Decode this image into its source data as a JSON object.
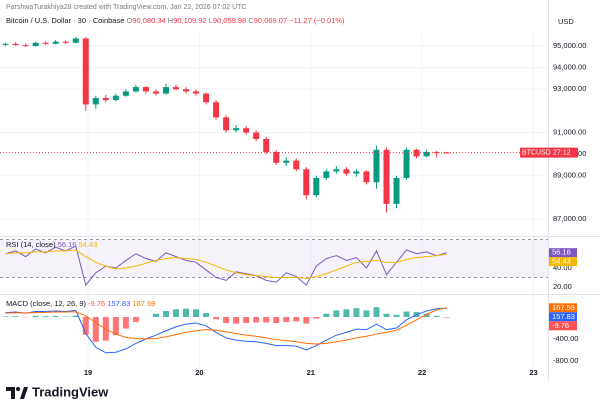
{
  "header": {
    "credit": "ParshwaTurakhiya28 created with TradingView.com, Jan 22, 2026 07:02 UTC",
    "symbol": "Bitcoin / U.S. Dollar · 30 · Coinbase",
    "ohlc": [
      {
        "key": "O",
        "value": "90,080.34"
      },
      {
        "key": "H",
        "value": "90,109.92"
      },
      {
        "key": "L",
        "value": "90,059.98"
      },
      {
        "key": "C",
        "value": "90,069.07"
      }
    ],
    "change": "−11.27 (−0.01%)",
    "currency": "USD"
  },
  "price_label": {
    "symbol": "BTCUSD",
    "countdown": "27:12"
  },
  "footer": {
    "brand": "TradingView"
  },
  "chart_data": [
    {
      "type": "candlestick",
      "up_color": "#089981",
      "down_color": "#f23645",
      "grid": true,
      "x": [
        18.26,
        18.35,
        18.44,
        18.53,
        18.62,
        18.71,
        18.8,
        18.89,
        18.98,
        19.07,
        19.16,
        19.25,
        19.34,
        19.43,
        19.52,
        19.61,
        19.7,
        19.79,
        19.88,
        19.97,
        20.06,
        20.15,
        20.24,
        20.33,
        20.42,
        20.51,
        20.6,
        20.69,
        20.78,
        20.87,
        20.96,
        21.05,
        21.14,
        21.23,
        21.32,
        21.41,
        21.5,
        21.59,
        21.68,
        21.77,
        21.86,
        21.95,
        22.04,
        22.13,
        22.22
      ],
      "open": [
        95050,
        95100,
        95040,
        95000,
        95150,
        95100,
        95200,
        95150,
        95350,
        92300,
        92600,
        92500,
        92700,
        92900,
        93100,
        92900,
        92800,
        93100,
        93000,
        92900,
        92800,
        92400,
        91700,
        91100,
        91200,
        91000,
        90700,
        90100,
        89600,
        89700,
        89300,
        88100,
        88900,
        89200,
        89300,
        89100,
        89200,
        88700,
        90200,
        87700,
        88900,
        90200,
        89900,
        90100,
        90080.34
      ],
      "high": [
        95150,
        95180,
        95120,
        95200,
        95220,
        95280,
        95260,
        95420,
        95400,
        92700,
        92750,
        92800,
        93000,
        93200,
        93150,
        93000,
        93250,
        93200,
        93100,
        93000,
        92850,
        92500,
        91800,
        91350,
        91300,
        91100,
        90800,
        90200,
        89850,
        89800,
        89400,
        89000,
        89300,
        89450,
        89400,
        89300,
        89250,
        90400,
        90300,
        89000,
        90300,
        90250,
        90200,
        90150,
        90109.92
      ],
      "low": [
        94980,
        95020,
        94950,
        94980,
        95050,
        95080,
        95090,
        95120,
        92000,
        92100,
        92400,
        92450,
        92650,
        92850,
        92800,
        92700,
        92750,
        92950,
        92800,
        92700,
        92300,
        91600,
        91000,
        91000,
        90900,
        90600,
        90000,
        89500,
        89450,
        89200,
        87900,
        88000,
        88800,
        89100,
        89000,
        88950,
        88600,
        88400,
        87300,
        87500,
        88800,
        89800,
        89850,
        89850,
        90059.98
      ],
      "close": [
        95100,
        95040,
        95000,
        95150,
        95100,
        95200,
        95150,
        95350,
        92300,
        92600,
        92500,
        92700,
        92900,
        93100,
        92900,
        92800,
        93100,
        93000,
        92900,
        92800,
        92400,
        91700,
        91100,
        91200,
        91000,
        90700,
        90100,
        89600,
        89700,
        89300,
        88100,
        88900,
        89200,
        89300,
        89100,
        89200,
        88700,
        90200,
        87700,
        88900,
        90200,
        89900,
        90100,
        90080.34,
        90069.07
      ],
      "xlim": [
        18.21,
        23.13
      ],
      "xticks": [
        19,
        20,
        21,
        22,
        23
      ],
      "ylim": [
        86260,
        95740
      ],
      "yticks": [
        {
          "value": 95000,
          "label": "95,000.00"
        },
        {
          "value": 94000,
          "label": "94,000.00"
        },
        {
          "value": 93000,
          "label": "93,000.00"
        },
        {
          "value": 91000,
          "label": "91,000.00"
        },
        {
          "value": 90000,
          "label": "90,000.00"
        },
        {
          "value": 89000,
          "label": "89,000.00"
        },
        {
          "value": 87000,
          "label": "87,000.00"
        }
      ]
    },
    {
      "type": "line",
      "title": "RSI (14, close)",
      "band": [
        30,
        70
      ],
      "band_color": "#7e57c2",
      "series": [
        {
          "color": "#7e57c2",
          "values": [
            55,
            58,
            52,
            60,
            56,
            62,
            58,
            63,
            22,
            35,
            42,
            40,
            48,
            55,
            50,
            47,
            56,
            52,
            48,
            46,
            38,
            30,
            27,
            36,
            34,
            32,
            27,
            25,
            35,
            31,
            22,
            42,
            50,
            53,
            48,
            51,
            40,
            58,
            33,
            46,
            59,
            55,
            57,
            53,
            56.16
          ]
        },
        {
          "color": "#f5b800",
          "values": [
            55,
            56,
            56,
            57,
            57,
            58,
            58,
            59,
            52,
            46,
            42,
            39,
            40,
            42,
            45,
            48,
            50,
            51,
            50,
            49,
            46,
            42,
            38,
            35,
            33,
            32,
            31,
            30,
            30,
            30,
            29,
            31,
            34,
            38,
            42,
            46,
            47,
            48,
            46,
            46,
            49,
            51,
            52,
            53,
            54.43
          ]
        }
      ],
      "ylim": [
        13.7,
        71.6
      ],
      "yticks": [
        {
          "value": 40,
          "label": "40.00"
        },
        {
          "value": 20,
          "label": "20.00"
        }
      ]
    },
    {
      "type": "line",
      "title": "MACD (close, 12, 26, 9)",
      "series": [
        {
          "style": "histogram",
          "color": "#26a69a",
          "negative_color": "#ff5252",
          "values": [
            10,
            15,
            -5,
            20,
            15,
            20,
            8,
            25,
            -320,
            -450,
            -430,
            -330,
            -210,
            -90,
            0,
            60,
            110,
            140,
            150,
            140,
            70,
            -40,
            -110,
            -120,
            -110,
            -100,
            -100,
            -110,
            -90,
            -80,
            -120,
            -30,
            60,
            120,
            140,
            160,
            120,
            180,
            60,
            40,
            100,
            90,
            60,
            20,
            -9.76
          ]
        },
        {
          "color": "#2962ff",
          "values": [
            80,
            90,
            70,
            100,
            100,
            110,
            100,
            120,
            -300,
            -550,
            -650,
            -640,
            -580,
            -480,
            -400,
            -330,
            -250,
            -180,
            -130,
            -110,
            -160,
            -280,
            -380,
            -420,
            -440,
            -450,
            -480,
            -520,
            -520,
            -530,
            -600,
            -520,
            -420,
            -330,
            -280,
            -220,
            -230,
            -130,
            -230,
            -200,
            -50,
            40,
            110,
            150,
            157.83
          ]
        },
        {
          "color": "#ff6d00",
          "values": [
            70,
            75,
            75,
            80,
            85,
            90,
            92,
            95,
            20,
            -100,
            -220,
            -310,
            -370,
            -390,
            -400,
            -390,
            -360,
            -320,
            -280,
            -250,
            -230,
            -240,
            -270,
            -300,
            -330,
            -350,
            -380,
            -410,
            -430,
            -450,
            -480,
            -490,
            -480,
            -450,
            -420,
            -380,
            -350,
            -310,
            -280,
            -240,
            -150,
            -50,
            50,
            130,
            167.59
          ]
        }
      ],
      "ylim": [
        -909,
        382
      ],
      "yticks": [
        {
          "value": -400,
          "label": "-400.00"
        },
        {
          "value": -800,
          "label": "-800.00"
        }
      ]
    }
  ]
}
